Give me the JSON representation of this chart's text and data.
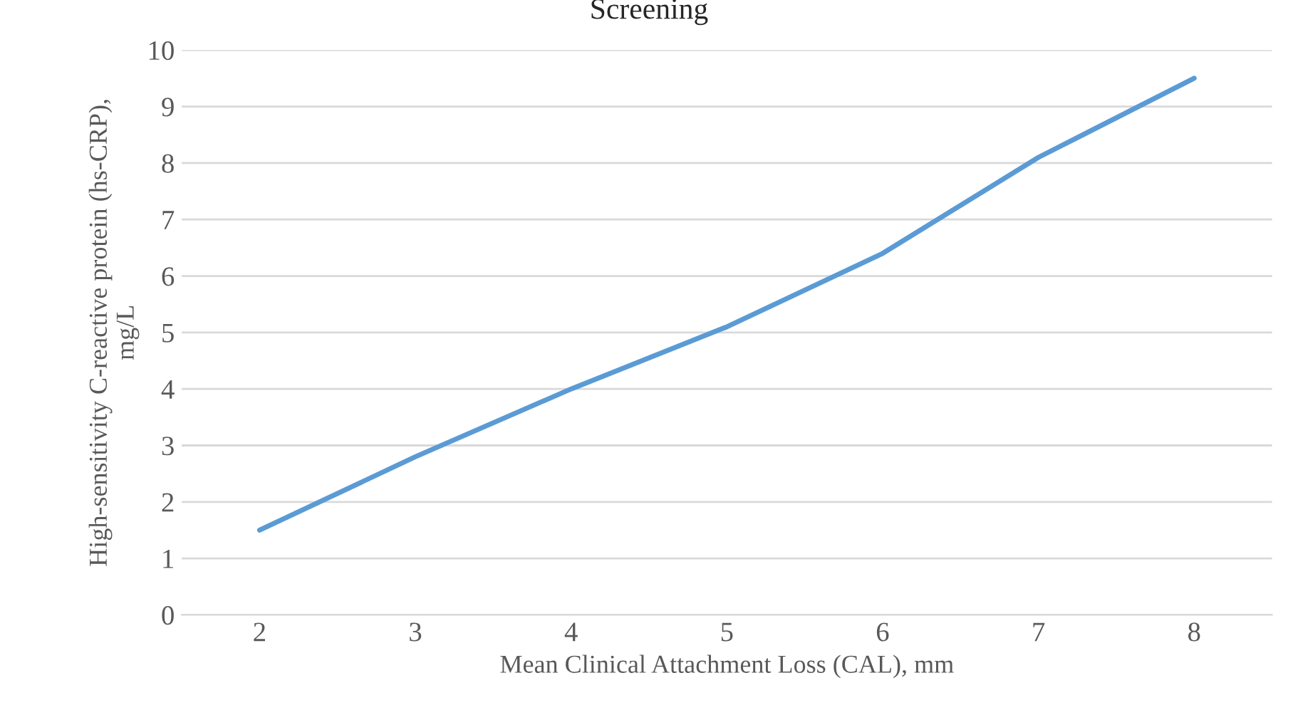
{
  "chart_data": {
    "type": "line",
    "title": "Screening",
    "xlabel": "Mean Clinical Attachment Loss (CAL), mm",
    "ylabel": "High-sensitivity C-reactive protein (hs-CRP),\nmg/L",
    "categories": [
      "2",
      "3",
      "4",
      "5",
      "6",
      "7",
      "8"
    ],
    "series": [
      {
        "color": "#5b9bd5",
        "values": [
          1.5,
          2.8,
          4.0,
          5.1,
          6.4,
          8.1,
          9.5
        ]
      }
    ],
    "ylim": [
      0,
      10
    ],
    "yticks": [
      0,
      1,
      2,
      3,
      4,
      5,
      6,
      7,
      8,
      9,
      10
    ],
    "grid": "y",
    "legend": false,
    "marker": "none",
    "line_style": "solid"
  }
}
